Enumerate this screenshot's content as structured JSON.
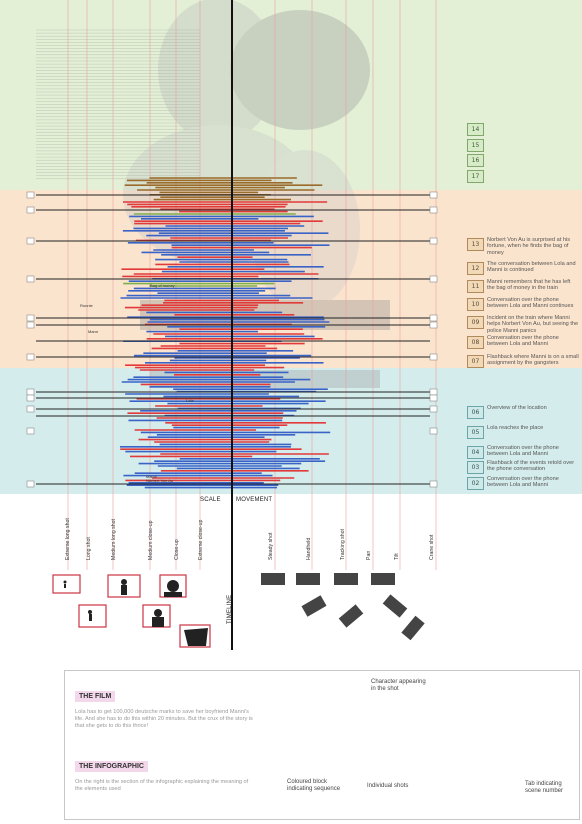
{
  "palette": {
    "green_block": "#e3f0d6",
    "orange_block": "#fbe4cd",
    "teal_block": "#d5ecec",
    "red": "#e23a3a",
    "blue": "#3a63c8",
    "brown": "#9a6b2a",
    "green": "#7fb04a",
    "black": "#222222",
    "axis_pink": "#e9a0a0"
  },
  "sequences": [
    {
      "n": "14",
      "color": "green",
      "text": ""
    },
    {
      "n": "15",
      "color": "green",
      "text": ""
    },
    {
      "n": "16",
      "color": "green",
      "text": ""
    },
    {
      "n": "17",
      "color": "green",
      "text": ""
    },
    {
      "n": "13",
      "color": "orange",
      "text": "Norbert Von Au is surprised at his fortune, when he finds the bag of money"
    },
    {
      "n": "12",
      "color": "orange",
      "text": "The conversation between Lola and Manni is continued"
    },
    {
      "n": "11",
      "color": "orange",
      "text": "Manni remembers that he has left the bag of money in the train"
    },
    {
      "n": "10",
      "color": "orange",
      "text": "Conversation over the phone between Lola and Manni continues"
    },
    {
      "n": "09",
      "color": "orange",
      "text": "Incident on the train where Manni helps Norbert Von Au, but seeing the police Manni panics"
    },
    {
      "n": "08",
      "color": "orange",
      "text": "Conversation over the phone between Lola and Manni"
    },
    {
      "n": "07",
      "color": "orange",
      "text": "Flashback where Manni is on a small assignment by the gangsters"
    },
    {
      "n": "06",
      "color": "teal",
      "text": "Overview of the location"
    },
    {
      "n": "05",
      "color": "teal",
      "text": "Lola reaches the place"
    },
    {
      "n": "04",
      "color": "teal",
      "text": "Conversation over the phone between Lola and Manni"
    },
    {
      "n": "03",
      "color": "teal",
      "text": "Flashback of the events retold over the phone conversation"
    },
    {
      "n": "02",
      "color": "teal",
      "text": "Conversation over the phone between Lola and Manni"
    }
  ],
  "axis": {
    "scale": "SCALE",
    "movement": "MOVEMENT",
    "timeline": "TIMELINE"
  },
  "scale_labels": [
    "Extreme long shot",
    "Long shot",
    "Medium long shot",
    "Medium close-up",
    "Close-up",
    "Extreme close-up"
  ],
  "movement_labels": [
    "Steady shot",
    "Handheld",
    "Tracking shot",
    "Pan",
    "Tilt",
    "Crane shot"
  ],
  "character_labels": [
    "Bag of money",
    "Ronnie",
    "Mann",
    "Lola",
    "Manni",
    "Norbert Von Au"
  ],
  "legend": {
    "film_title": "THE FILM",
    "film_text": "Lola has to get 100,000 deutsche marks to save her boyfriend Manni's life. And she has to do this within 20 minutes. But the crux of the story is that she gets to do this thrice!",
    "info_title": "THE INFOGRAPHIC",
    "info_text": "On the right is the section of the infographic explaining the meaning of the elements used",
    "note_character": "Character appearing in the shot",
    "note_block": "Coloured block indicating sequence",
    "note_shots": "Individual shots",
    "note_tab": "Tab indicating scene number"
  }
}
